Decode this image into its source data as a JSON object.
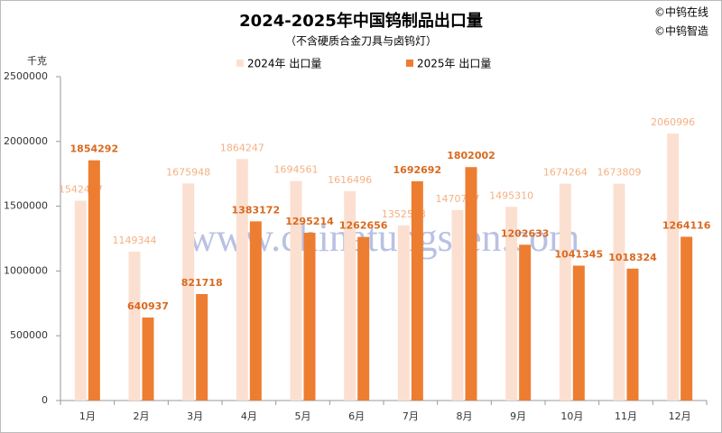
{
  "chart_data": {
    "type": "bar",
    "title": "2024-2025年中国钨制品出口量",
    "subtitle": "（不含硬质合金刀具与卤钨灯）",
    "y_axis_label": "千克",
    "copyright": [
      "©中钨在线",
      "©中钨智造"
    ],
    "watermark": "www.chinatungsten.com",
    "categories": [
      "1月",
      "2月",
      "3月",
      "4月",
      "5月",
      "6月",
      "7月",
      "8月",
      "9月",
      "10月",
      "11月",
      "12月"
    ],
    "series": [
      {
        "name": "2024年 出口量",
        "color": "#fbe0d1",
        "label_color": "#f4b183",
        "values": [
          1542417,
          1149344,
          1675948,
          1864247,
          1694561,
          1616496,
          1352528,
          1470727,
          1495310,
          1674264,
          1673809,
          2060996
        ]
      },
      {
        "name": "2025年 出口量",
        "color": "#ed7d31",
        "label_color": "#d9691f",
        "values": [
          1854292,
          640937,
          821718,
          1383172,
          1295214,
          1262656,
          1692692,
          1802002,
          1202633,
          1041345,
          1018324,
          1264116
        ]
      }
    ],
    "ylim": [
      0,
      2500000
    ],
    "yticks": [
      0,
      500000,
      1000000,
      1500000,
      2000000,
      2500000
    ],
    "grid": false
  }
}
